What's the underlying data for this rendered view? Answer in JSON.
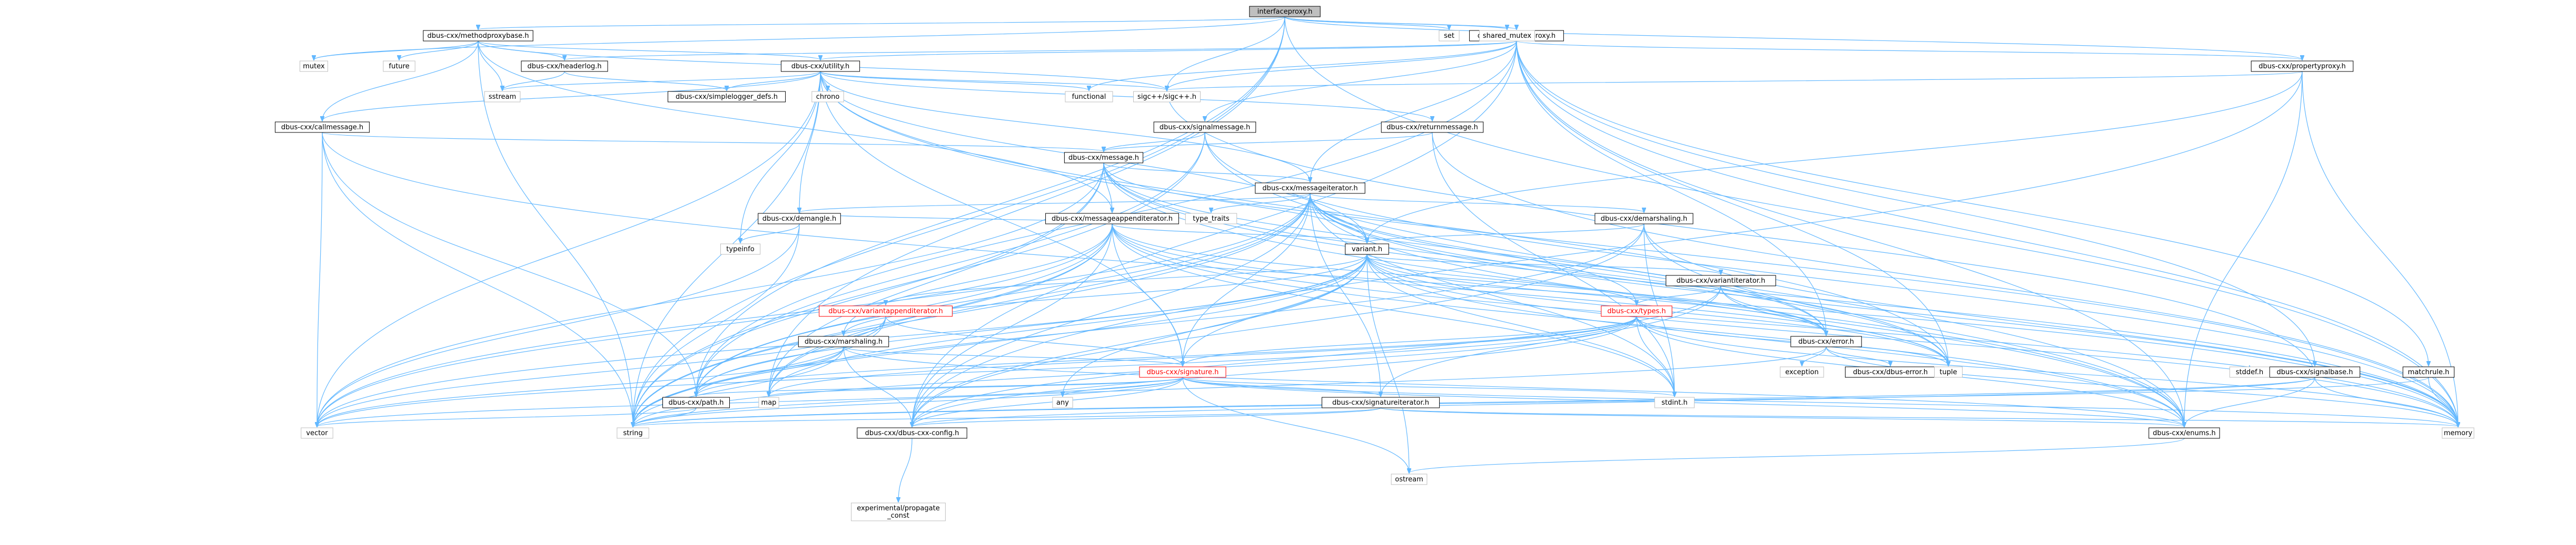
{
  "colors": {
    "edge": "#63b8ff",
    "box_border": "#000000",
    "plain_border": "#bfbfbf",
    "root_fill": "#bfbfbf",
    "red_text": "#ff0000"
  },
  "nodes": [
    {
      "id": "interfaceproxy_h",
      "label": "interfaceproxy.h",
      "kind": "root"
    },
    {
      "id": "methodproxybase_h",
      "label": "dbus-cxx/methodproxybase.h",
      "kind": "file"
    },
    {
      "id": "signalproxy_h",
      "label": "dbus-cxx/signalproxy.h",
      "kind": "file"
    },
    {
      "id": "set",
      "label": "set",
      "kind": "plain"
    },
    {
      "id": "shared_mutex",
      "label": "shared_mutex",
      "kind": "plain"
    },
    {
      "id": "mutex",
      "label": "mutex",
      "kind": "plain"
    },
    {
      "id": "future",
      "label": "future",
      "kind": "plain"
    },
    {
      "id": "headerlog_h",
      "label": "dbus-cxx/headerlog.h",
      "kind": "file"
    },
    {
      "id": "utility_h",
      "label": "dbus-cxx/utility.h",
      "kind": "file"
    },
    {
      "id": "propertyproxy_h",
      "label": "dbus-cxx/propertyproxy.h",
      "kind": "file"
    },
    {
      "id": "sigcpp",
      "label": "sigc++/sigc++.h",
      "kind": "plain"
    },
    {
      "id": "functional",
      "label": "functional",
      "kind": "plain"
    },
    {
      "id": "sstream",
      "label": "sstream",
      "kind": "plain"
    },
    {
      "id": "simplelogger_defs_h",
      "label": "dbus-cxx/simplelogger_defs.h",
      "kind": "file"
    },
    {
      "id": "chrono",
      "label": "chrono",
      "kind": "plain"
    },
    {
      "id": "callmessage_h",
      "label": "dbus-cxx/callmessage.h",
      "kind": "file"
    },
    {
      "id": "signalmessage_h",
      "label": "dbus-cxx/signalmessage.h",
      "kind": "file"
    },
    {
      "id": "returnmessage_h",
      "label": "dbus-cxx/returnmessage.h",
      "kind": "file"
    },
    {
      "id": "message_h",
      "label": "dbus-cxx/message.h",
      "kind": "file"
    },
    {
      "id": "messageiterator_h",
      "label": "dbus-cxx/messageiterator.h",
      "kind": "file"
    },
    {
      "id": "demangle_h",
      "label": "dbus-cxx/demangle.h",
      "kind": "file"
    },
    {
      "id": "messageappenditerator_h",
      "label": "dbus-cxx/messageappenditerator.h",
      "kind": "file"
    },
    {
      "id": "type_traits",
      "label": "type_traits",
      "kind": "plain"
    },
    {
      "id": "demarshaling_h",
      "label": "dbus-cxx/demarshaling.h",
      "kind": "file"
    },
    {
      "id": "typeinfo",
      "label": "typeinfo",
      "kind": "plain"
    },
    {
      "id": "variant_h",
      "label": "variant.h",
      "kind": "file"
    },
    {
      "id": "variantiterator_h",
      "label": "dbus-cxx/variantiterator.h",
      "kind": "file"
    },
    {
      "id": "variantappenditerator_h",
      "label": "dbus-cxx/variantappenditerator.h",
      "kind": "red"
    },
    {
      "id": "marshaling_h",
      "label": "dbus-cxx/marshaling.h",
      "kind": "file"
    },
    {
      "id": "types_h",
      "label": "dbus-cxx/types.h",
      "kind": "red"
    },
    {
      "id": "error_h",
      "label": "dbus-cxx/error.h",
      "kind": "file"
    },
    {
      "id": "signalbase_h",
      "label": "dbus-cxx/signalbase.h",
      "kind": "file"
    },
    {
      "id": "matchrule_h",
      "label": "matchrule.h",
      "kind": "file"
    },
    {
      "id": "signature_h",
      "label": "dbus-cxx/signature.h",
      "kind": "red"
    },
    {
      "id": "dbus_error",
      "label": "dbus-cxx/dbus-error.h",
      "kind": "file"
    },
    {
      "id": "exception",
      "label": "exception",
      "kind": "plain"
    },
    {
      "id": "tuple",
      "label": "tuple",
      "kind": "plain"
    },
    {
      "id": "stddef_h",
      "label": "stddef.h",
      "kind": "plain"
    },
    {
      "id": "map",
      "label": "map",
      "kind": "plain"
    },
    {
      "id": "path_h",
      "label": "dbus-cxx/path.h",
      "kind": "file"
    },
    {
      "id": "any",
      "label": "any",
      "kind": "plain"
    },
    {
      "id": "signatureiterator_h",
      "label": "dbus-cxx/signatureiterator.h",
      "kind": "file"
    },
    {
      "id": "stdint_h",
      "label": "stdint.h",
      "kind": "plain"
    },
    {
      "id": "vector",
      "label": "vector",
      "kind": "plain"
    },
    {
      "id": "string",
      "label": "string",
      "kind": "plain"
    },
    {
      "id": "config_h",
      "label": "dbus-cxx/dbus-cxx-config.h",
      "kind": "file"
    },
    {
      "id": "enums_h",
      "label": "dbus-cxx/enums.h",
      "kind": "file"
    },
    {
      "id": "memory",
      "label": "memory",
      "kind": "plain"
    },
    {
      "id": "ostream",
      "label": "ostream",
      "kind": "plain"
    },
    {
      "id": "propagate_const",
      "label": "experimental/propagate\n_const",
      "kind": "plain"
    }
  ],
  "edges": [
    [
      "interfaceproxy_h",
      "methodproxybase_h"
    ],
    [
      "interfaceproxy_h",
      "signalproxy_h"
    ],
    [
      "interfaceproxy_h",
      "set"
    ],
    [
      "interfaceproxy_h",
      "shared_mutex"
    ],
    [
      "interfaceproxy_h",
      "mutex"
    ],
    [
      "interfaceproxy_h",
      "sigcpp"
    ],
    [
      "interfaceproxy_h",
      "memory"
    ],
    [
      "interfaceproxy_h",
      "path_h"
    ],
    [
      "interfaceproxy_h",
      "map"
    ],
    [
      "interfaceproxy_h",
      "string"
    ],
    [
      "interfaceproxy_h",
      "propertyproxy_h"
    ],
    [
      "methodproxybase_h",
      "mutex"
    ],
    [
      "methodproxybase_h",
      "future"
    ],
    [
      "methodproxybase_h",
      "headerlog_h"
    ],
    [
      "methodproxybase_h",
      "utility_h"
    ],
    [
      "methodproxybase_h",
      "sigcpp"
    ],
    [
      "methodproxybase_h",
      "callmessage_h"
    ],
    [
      "methodproxybase_h",
      "messageappenditerator_h"
    ],
    [
      "methodproxybase_h",
      "sstream"
    ],
    [
      "methodproxybase_h",
      "string"
    ],
    [
      "signalproxy_h",
      "sigcpp"
    ],
    [
      "signalproxy_h",
      "headerlog_h"
    ],
    [
      "signalproxy_h",
      "utility_h"
    ],
    [
      "signalproxy_h",
      "functional"
    ],
    [
      "signalproxy_h",
      "signalmessage_h"
    ],
    [
      "signalproxy_h",
      "messageiterator_h"
    ],
    [
      "signalproxy_h",
      "propertyproxy_h"
    ],
    [
      "signalproxy_h",
      "matchrule_h"
    ],
    [
      "signalproxy_h",
      "signalbase_h"
    ],
    [
      "signalproxy_h",
      "error_h"
    ],
    [
      "signalproxy_h",
      "tuple"
    ],
    [
      "signalproxy_h",
      "enums_h"
    ],
    [
      "signalproxy_h",
      "memory"
    ],
    [
      "signalproxy_h",
      "config_h"
    ],
    [
      "signalproxy_h",
      "path_h"
    ],
    [
      "headerlog_h",
      "simplelogger_defs_h"
    ],
    [
      "headerlog_h",
      "sstream"
    ],
    [
      "utility_h",
      "sstream"
    ],
    [
      "utility_h",
      "functional"
    ],
    [
      "utility_h",
      "simplelogger_defs_h"
    ],
    [
      "utility_h",
      "chrono"
    ],
    [
      "utility_h",
      "callmessage_h"
    ],
    [
      "utility_h",
      "returnmessage_h"
    ],
    [
      "utility_h",
      "demangle_h"
    ],
    [
      "utility_h",
      "typeinfo"
    ],
    [
      "utility_h",
      "messageiterator_h"
    ],
    [
      "utility_h",
      "variant_h"
    ],
    [
      "utility_h",
      "signature_h"
    ],
    [
      "utility_h",
      "vector"
    ],
    [
      "utility_h",
      "string"
    ],
    [
      "utility_h",
      "sigcpp"
    ],
    [
      "utility_h",
      "memory"
    ],
    [
      "utility_h",
      "tuple"
    ],
    [
      "propertyproxy_h",
      "sigcpp"
    ],
    [
      "propertyproxy_h",
      "variant_h"
    ],
    [
      "propertyproxy_h",
      "memory"
    ],
    [
      "propertyproxy_h",
      "config_h"
    ],
    [
      "propertyproxy_h",
      "enums_h"
    ],
    [
      "callmessage_h",
      "message_h"
    ],
    [
      "callmessage_h",
      "path_h"
    ],
    [
      "callmessage_h",
      "string"
    ],
    [
      "callmessage_h",
      "vector"
    ],
    [
      "callmessage_h",
      "memory"
    ],
    [
      "signalmessage_h",
      "message_h"
    ],
    [
      "signalmessage_h",
      "path_h"
    ],
    [
      "signalmessage_h",
      "string"
    ],
    [
      "signalmessage_h",
      "memory"
    ],
    [
      "signalmessage_h",
      "enums_h"
    ],
    [
      "returnmessage_h",
      "message_h"
    ],
    [
      "returnmessage_h",
      "memory"
    ],
    [
      "returnmessage_h",
      "stdint_h"
    ],
    [
      "message_h",
      "messageiterator_h"
    ],
    [
      "message_h",
      "messageappenditerator_h"
    ],
    [
      "message_h",
      "variant_h"
    ],
    [
      "message_h",
      "enums_h"
    ],
    [
      "message_h",
      "memory"
    ],
    [
      "message_h",
      "map"
    ],
    [
      "message_h",
      "string"
    ],
    [
      "message_h",
      "vector"
    ],
    [
      "message_h",
      "error_h"
    ],
    [
      "message_h",
      "tuple"
    ],
    [
      "messageiterator_h",
      "demangle_h"
    ],
    [
      "messageiterator_h",
      "type_traits"
    ],
    [
      "messageiterator_h",
      "demarshaling_h"
    ],
    [
      "messageiterator_h",
      "variant_h"
    ],
    [
      "messageiterator_h",
      "types_h"
    ],
    [
      "messageiterator_h",
      "signature_h"
    ],
    [
      "messageiterator_h",
      "error_h"
    ],
    [
      "messageiterator_h",
      "signatureiterator_h"
    ],
    [
      "messageiterator_h",
      "enums_h"
    ],
    [
      "messageiterator_h",
      "memory"
    ],
    [
      "messageiterator_h",
      "string"
    ],
    [
      "messageiterator_h",
      "vector"
    ],
    [
      "messageiterator_h",
      "map"
    ],
    [
      "messageiterator_h",
      "tuple"
    ],
    [
      "messageiterator_h",
      "stdint_h"
    ],
    [
      "messageiterator_h",
      "path_h"
    ],
    [
      "messageiterator_h",
      "config_h"
    ],
    [
      "demangle_h",
      "typeinfo"
    ],
    [
      "demangle_h",
      "string"
    ],
    [
      "demangle_h",
      "vector"
    ],
    [
      "messageappenditerator_h",
      "variant_h"
    ],
    [
      "messageappenditerator_h",
      "marshaling_h"
    ],
    [
      "messageappenditerator_h",
      "signature_h"
    ],
    [
      "messageappenditerator_h",
      "error_h"
    ],
    [
      "messageappenditerator_h",
      "enums_h"
    ],
    [
      "messageappenditerator_h",
      "memory"
    ],
    [
      "messageappenditerator_h",
      "string"
    ],
    [
      "messageappenditerator_h",
      "vector"
    ],
    [
      "messageappenditerator_h",
      "map"
    ],
    [
      "messageappenditerator_h",
      "tuple"
    ],
    [
      "messageappenditerator_h",
      "stdint_h"
    ],
    [
      "messageappenditerator_h",
      "path_h"
    ],
    [
      "messageappenditerator_h",
      "config_h"
    ],
    [
      "messageappenditerator_h",
      "demangle_h"
    ],
    [
      "demarshaling_h",
      "variant_h"
    ],
    [
      "demarshaling_h",
      "enums_h"
    ],
    [
      "demarshaling_h",
      "stdint_h"
    ],
    [
      "demarshaling_h",
      "string"
    ],
    [
      "demarshaling_h",
      "config_h"
    ],
    [
      "demarshaling_h",
      "memory"
    ],
    [
      "variant_h",
      "variantiterator_h"
    ],
    [
      "variant_h",
      "variantappenditerator_h"
    ],
    [
      "variant_h",
      "marshaling_h"
    ],
    [
      "variant_h",
      "types_h"
    ],
    [
      "variant_h",
      "signature_h"
    ],
    [
      "variant_h",
      "error_h"
    ],
    [
      "variant_h",
      "enums_h"
    ],
    [
      "variant_h",
      "path_h"
    ],
    [
      "variant_h",
      "any"
    ],
    [
      "variant_h",
      "map"
    ],
    [
      "variant_h",
      "vector"
    ],
    [
      "variant_h",
      "string"
    ],
    [
      "variant_h",
      "tuple"
    ],
    [
      "variant_h",
      "stdint_h"
    ],
    [
      "variant_h",
      "ostream"
    ],
    [
      "variant_h",
      "config_h"
    ],
    [
      "variant_h",
      "memory"
    ],
    [
      "variantiterator_h",
      "types_h"
    ],
    [
      "variantiterator_h",
      "signatureiterator_h"
    ],
    [
      "variantiterator_h",
      "error_h"
    ],
    [
      "variantiterator_h",
      "config_h"
    ],
    [
      "variantiterator_h",
      "tuple"
    ],
    [
      "variantappenditerator_h",
      "signature_h"
    ],
    [
      "variantappenditerator_h",
      "path_h"
    ],
    [
      "variantappenditerator_h",
      "string"
    ],
    [
      "variantappenditerator_h",
      "vector"
    ],
    [
      "marshaling_h",
      "signature_h"
    ],
    [
      "marshaling_h",
      "path_h"
    ],
    [
      "marshaling_h",
      "enums_h"
    ],
    [
      "marshaling_h",
      "string"
    ],
    [
      "marshaling_h",
      "vector"
    ],
    [
      "marshaling_h",
      "config_h"
    ],
    [
      "types_h",
      "signature_h"
    ],
    [
      "types_h",
      "path_h"
    ],
    [
      "types_h",
      "enums_h"
    ],
    [
      "types_h",
      "string"
    ],
    [
      "types_h",
      "map"
    ],
    [
      "types_h",
      "vector"
    ],
    [
      "types_h",
      "tuple"
    ],
    [
      "types_h",
      "stdint_h"
    ],
    [
      "types_h",
      "memory"
    ],
    [
      "types_h",
      "config_h"
    ],
    [
      "error_h",
      "dbus_error"
    ],
    [
      "error_h",
      "exception"
    ],
    [
      "error_h",
      "string"
    ],
    [
      "error_h",
      "memory"
    ],
    [
      "signalbase_h",
      "enums_h"
    ],
    [
      "signalbase_h",
      "stddef_h"
    ],
    [
      "signalbase_h",
      "string"
    ],
    [
      "signalbase_h",
      "memory"
    ],
    [
      "signalbase_h",
      "config_h"
    ],
    [
      "signalbase_h",
      "sigcpp"
    ],
    [
      "matchrule_h",
      "string"
    ],
    [
      "matchrule_h",
      "memory"
    ],
    [
      "signature_h",
      "signatureiterator_h"
    ],
    [
      "signature_h",
      "path_h"
    ],
    [
      "signature_h",
      "map"
    ],
    [
      "signature_h",
      "any"
    ],
    [
      "signature_h",
      "string"
    ],
    [
      "signature_h",
      "vector"
    ],
    [
      "signature_h",
      "stdint_h"
    ],
    [
      "signature_h",
      "memory"
    ],
    [
      "signature_h",
      "ostream"
    ],
    [
      "signature_h",
      "config_h"
    ],
    [
      "signature_h",
      "enums_h"
    ],
    [
      "signatureiterator_h",
      "enums_h"
    ],
    [
      "signatureiterator_h",
      "string"
    ],
    [
      "signatureiterator_h",
      "memory"
    ],
    [
      "signatureiterator_h",
      "config_h"
    ],
    [
      "path_h",
      "string"
    ],
    [
      "path_h",
      "vector"
    ],
    [
      "config_h",
      "propagate_const"
    ],
    [
      "enums_h",
      "ostream"
    ]
  ]
}
